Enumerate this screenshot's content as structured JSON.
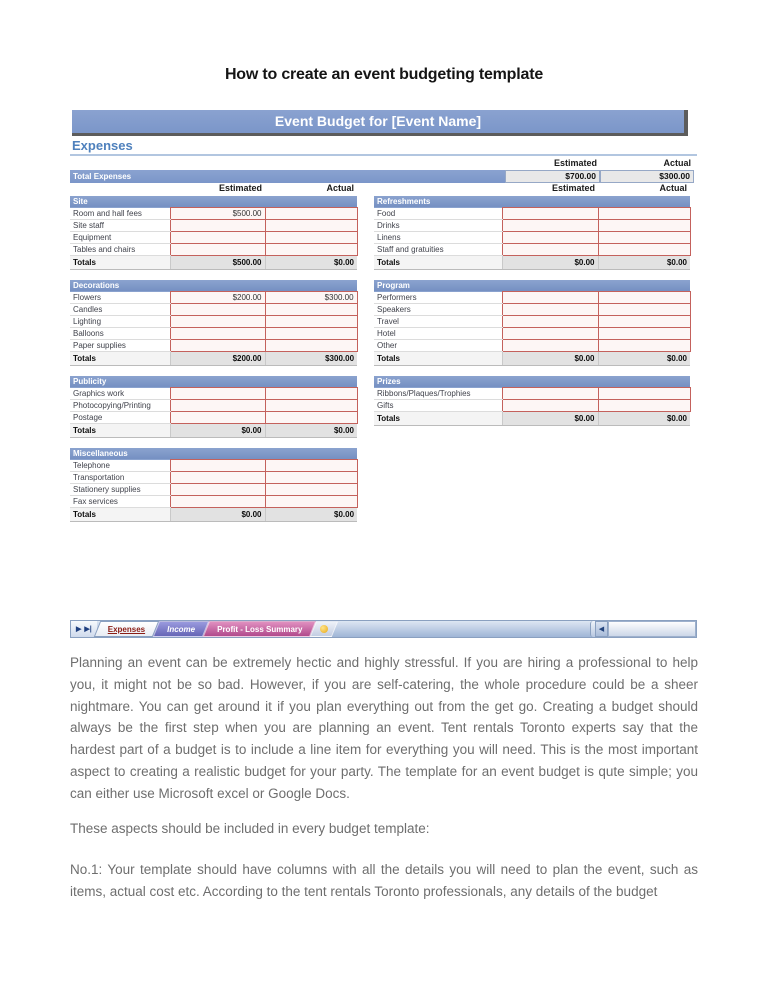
{
  "page": {
    "title": "How to create an event budgeting template"
  },
  "colors": {
    "header_blue": "#7b96c9",
    "section_blue": "#4f81bd",
    "cell_border_red": "#c4615c",
    "active_tab_text": "#8b1d15",
    "income_tab": "#7878c8",
    "profit_tab": "#b14a8c",
    "body_text_gray": "#6e6e6e"
  },
  "spreadsheet": {
    "title_bar": "Event Budget for [Event Name]",
    "section": "Expenses",
    "columns": {
      "estimated": "Estimated",
      "actual": "Actual"
    },
    "total_expenses": {
      "label": "Total Expenses",
      "estimated": "$700.00",
      "actual": "$300.00"
    },
    "tables": [
      {
        "name": "Site",
        "rows": [
          {
            "label": "Room and hall fees",
            "estimated": "$500.00",
            "actual": ""
          },
          {
            "label": "Site staff",
            "estimated": "",
            "actual": ""
          },
          {
            "label": "Equipment",
            "estimated": "",
            "actual": ""
          },
          {
            "label": "Tables and chairs",
            "estimated": "",
            "actual": ""
          }
        ],
        "totals": {
          "label": "Totals",
          "estimated": "$500.00",
          "actual": "$0.00"
        }
      },
      {
        "name": "Refreshments",
        "rows": [
          {
            "label": "Food",
            "estimated": "",
            "actual": ""
          },
          {
            "label": "Drinks",
            "estimated": "",
            "actual": ""
          },
          {
            "label": "Linens",
            "estimated": "",
            "actual": ""
          },
          {
            "label": "Staff and gratuities",
            "estimated": "",
            "actual": ""
          }
        ],
        "totals": {
          "label": "Totals",
          "estimated": "$0.00",
          "actual": "$0.00"
        }
      },
      {
        "name": "Decorations",
        "rows": [
          {
            "label": "Flowers",
            "estimated": "$200.00",
            "actual": "$300.00"
          },
          {
            "label": "Candles",
            "estimated": "",
            "actual": ""
          },
          {
            "label": "Lighting",
            "estimated": "",
            "actual": ""
          },
          {
            "label": "Balloons",
            "estimated": "",
            "actual": ""
          },
          {
            "label": "Paper supplies",
            "estimated": "",
            "actual": ""
          }
        ],
        "totals": {
          "label": "Totals",
          "estimated": "$200.00",
          "actual": "$300.00"
        }
      },
      {
        "name": "Program",
        "rows": [
          {
            "label": "Performers",
            "estimated": "",
            "actual": ""
          },
          {
            "label": "Speakers",
            "estimated": "",
            "actual": ""
          },
          {
            "label": "Travel",
            "estimated": "",
            "actual": ""
          },
          {
            "label": "Hotel",
            "estimated": "",
            "actual": ""
          },
          {
            "label": "Other",
            "estimated": "",
            "actual": ""
          }
        ],
        "totals": {
          "label": "Totals",
          "estimated": "$0.00",
          "actual": "$0.00"
        }
      },
      {
        "name": "Publicity",
        "rows": [
          {
            "label": "Graphics work",
            "estimated": "",
            "actual": ""
          },
          {
            "label": "Photocopying/Printing",
            "estimated": "",
            "actual": ""
          },
          {
            "label": "Postage",
            "estimated": "",
            "actual": ""
          }
        ],
        "totals": {
          "label": "Totals",
          "estimated": "$0.00",
          "actual": "$0.00"
        }
      },
      {
        "name": "Prizes",
        "rows": [
          {
            "label": "Ribbons/Plaques/Trophies",
            "estimated": "",
            "actual": ""
          },
          {
            "label": "Gifts",
            "estimated": "",
            "actual": ""
          }
        ],
        "totals": {
          "label": "Totals",
          "estimated": "$0.00",
          "actual": "$0.00"
        }
      },
      {
        "name": "Miscellaneous",
        "rows": [
          {
            "label": "Telephone",
            "estimated": "",
            "actual": ""
          },
          {
            "label": "Transportation",
            "estimated": "",
            "actual": ""
          },
          {
            "label": "Stationery supplies",
            "estimated": "",
            "actual": ""
          },
          {
            "label": "Fax services",
            "estimated": "",
            "actual": ""
          }
        ],
        "totals": {
          "label": "Totals",
          "estimated": "$0.00",
          "actual": "$0.00"
        }
      }
    ],
    "sheet_bar": {
      "nav_next_glyph": "▶",
      "nav_last_glyph": "▶|",
      "tabs": {
        "expenses": "Expenses",
        "income": "Income",
        "profit": "Profit - Loss Summary"
      },
      "scroll_left_glyph": "◀"
    }
  },
  "article": {
    "paragraphs": [
      "Planning an event can be extremely hectic and highly stressful. If you are hiring a professional to help you, it might not be so bad. However, if you are self-catering, the whole procedure could be a sheer nightmare. You can get around it if you plan everything out from the get go. Creating a budget should always be the first step when you are planning an event. Tent rentals Toronto experts say that the hardest part of a budget is to include a line item for everything you will need. This is the most important aspect to creating a realistic budget for your party. The template for an event budget is qute simple; you can either use Microsoft excel or Google Docs.",
      "These aspects should be included in every budget template:",
      "No.1: Your template should have columns with all the details you will need to plan the event, such as items, actual cost etc. According to the tent rentals Toronto professionals, any details of the budget"
    ]
  }
}
